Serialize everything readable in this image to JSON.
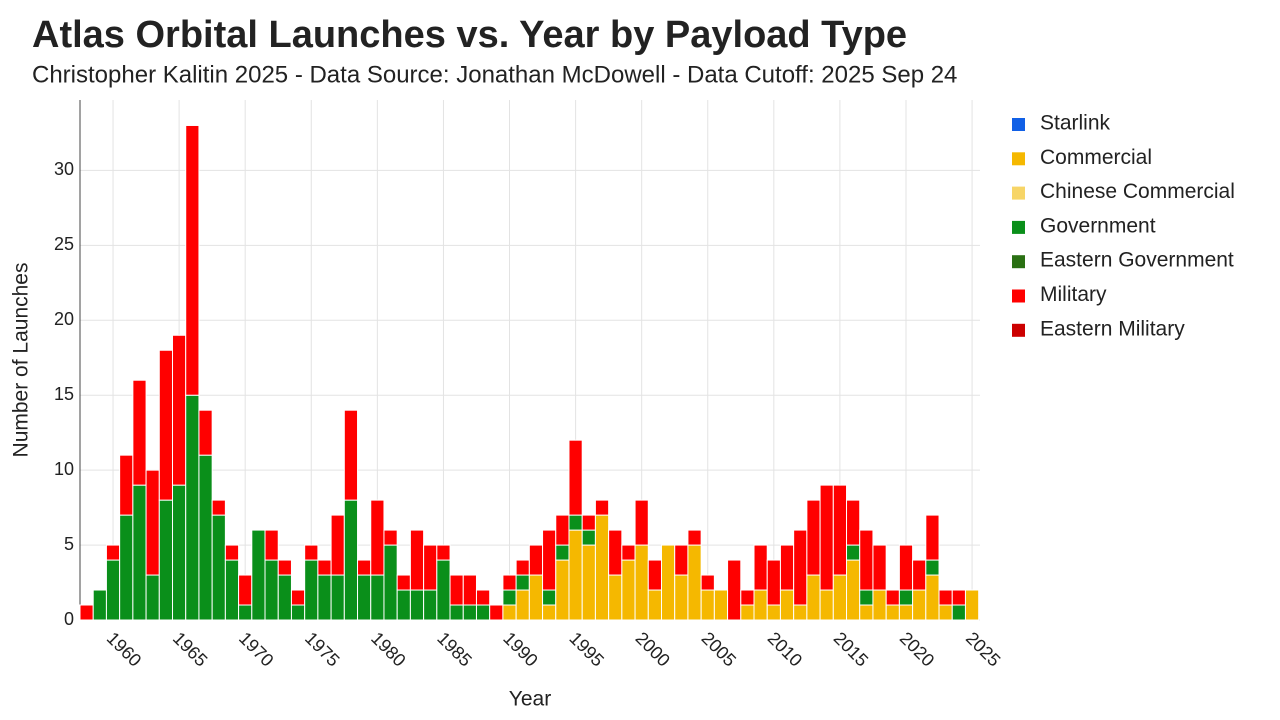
{
  "chart_data": {
    "type": "stacked_bar",
    "title": "Atlas Orbital Launches vs. Year by Payload Type",
    "subtitle": "Christopher Kalitin 2025 - Data Source: Jonathan McDowell - Data Cutoff: 2025 Sep 24",
    "x_label": "Year",
    "y_label": "Number of Launches",
    "x": [
      1958,
      1959,
      1960,
      1961,
      1962,
      1963,
      1964,
      1965,
      1966,
      1967,
      1968,
      1969,
      1970,
      1971,
      1972,
      1973,
      1974,
      1975,
      1976,
      1977,
      1978,
      1979,
      1980,
      1981,
      1982,
      1983,
      1984,
      1985,
      1986,
      1987,
      1988,
      1989,
      1990,
      1991,
      1992,
      1993,
      1994,
      1995,
      1996,
      1997,
      1998,
      1999,
      2000,
      2001,
      2002,
      2003,
      2004,
      2005,
      2006,
      2007,
      2008,
      2009,
      2010,
      2011,
      2012,
      2013,
      2014,
      2015,
      2016,
      2017,
      2018,
      2019,
      2020,
      2021,
      2022,
      2023,
      2024,
      2025
    ],
    "series": [
      {
        "name": "Starlink",
        "color": "#1160e6",
        "values": [
          0,
          0,
          0,
          0,
          0,
          0,
          0,
          0,
          0,
          0,
          0,
          0,
          0,
          0,
          0,
          0,
          0,
          0,
          0,
          0,
          0,
          0,
          0,
          0,
          0,
          0,
          0,
          0,
          0,
          0,
          0,
          0,
          0,
          0,
          0,
          0,
          0,
          0,
          0,
          0,
          0,
          0,
          0,
          0,
          0,
          0,
          0,
          0,
          0,
          0,
          0,
          0,
          0,
          0,
          0,
          0,
          0,
          0,
          0,
          0,
          0,
          0,
          0,
          0,
          0,
          0,
          0,
          0
        ]
      },
      {
        "name": "Commercial",
        "color": "#f5b800",
        "values": [
          0,
          0,
          0,
          0,
          0,
          0,
          0,
          0,
          0,
          0,
          0,
          0,
          0,
          0,
          0,
          0,
          0,
          0,
          0,
          0,
          0,
          0,
          0,
          0,
          0,
          0,
          0,
          0,
          0,
          0,
          0,
          0,
          1,
          2,
          3,
          1,
          4,
          6,
          5,
          7,
          3,
          4,
          5,
          2,
          5,
          3,
          5,
          2,
          2,
          0,
          1,
          2,
          1,
          2,
          1,
          3,
          2,
          3,
          4,
          1,
          2,
          1,
          1,
          2,
          3,
          1,
          0,
          2
        ]
      },
      {
        "name": "Chinese Commercial",
        "color": "#f7d567",
        "values": [
          0,
          0,
          0,
          0,
          0,
          0,
          0,
          0,
          0,
          0,
          0,
          0,
          0,
          0,
          0,
          0,
          0,
          0,
          0,
          0,
          0,
          0,
          0,
          0,
          0,
          0,
          0,
          0,
          0,
          0,
          0,
          0,
          0,
          0,
          0,
          0,
          0,
          0,
          0,
          0,
          0,
          0,
          0,
          0,
          0,
          0,
          0,
          0,
          0,
          0,
          0,
          0,
          0,
          0,
          0,
          0,
          0,
          0,
          0,
          0,
          0,
          0,
          0,
          0,
          0,
          0,
          0,
          0
        ]
      },
      {
        "name": "Government",
        "color": "#0a8f1a",
        "values": [
          0,
          2,
          4,
          7,
          9,
          3,
          8,
          9,
          15,
          11,
          7,
          4,
          1,
          6,
          4,
          3,
          1,
          4,
          3,
          3,
          8,
          3,
          3,
          5,
          2,
          2,
          2,
          4,
          1,
          1,
          1,
          0,
          1,
          1,
          0,
          1,
          1,
          1,
          1,
          0,
          0,
          0,
          0,
          0,
          0,
          0,
          0,
          0,
          0,
          0,
          0,
          0,
          0,
          0,
          0,
          0,
          0,
          0,
          1,
          1,
          0,
          0,
          1,
          0,
          1,
          0,
          1,
          0
        ]
      },
      {
        "name": "Eastern Government",
        "color": "#2a7013",
        "values": [
          0,
          0,
          0,
          0,
          0,
          0,
          0,
          0,
          0,
          0,
          0,
          0,
          0,
          0,
          0,
          0,
          0,
          0,
          0,
          0,
          0,
          0,
          0,
          0,
          0,
          0,
          0,
          0,
          0,
          0,
          0,
          0,
          0,
          0,
          0,
          0,
          0,
          0,
          0,
          0,
          0,
          0,
          0,
          0,
          0,
          0,
          0,
          0,
          0,
          0,
          0,
          0,
          0,
          0,
          0,
          0,
          0,
          0,
          0,
          0,
          0,
          0,
          0,
          0,
          0,
          0,
          0,
          0
        ]
      },
      {
        "name": "Military",
        "color": "#ff0000",
        "values": [
          1,
          0,
          1,
          4,
          7,
          7,
          10,
          10,
          18,
          3,
          1,
          1,
          2,
          0,
          2,
          1,
          1,
          1,
          1,
          4,
          6,
          1,
          5,
          1,
          1,
          4,
          3,
          1,
          2,
          2,
          1,
          1,
          1,
          1,
          2,
          4,
          2,
          5,
          1,
          1,
          3,
          1,
          3,
          2,
          0,
          2,
          1,
          1,
          0,
          4,
          1,
          3,
          3,
          3,
          5,
          5,
          7,
          6,
          3,
          4,
          3,
          1,
          3,
          2,
          3,
          1,
          1,
          0
        ]
      },
      {
        "name": "Eastern Military",
        "color": "#cc0000",
        "values": [
          0,
          0,
          0,
          0,
          0,
          0,
          0,
          0,
          0,
          0,
          0,
          0,
          0,
          0,
          0,
          0,
          0,
          0,
          0,
          0,
          0,
          0,
          0,
          0,
          0,
          0,
          0,
          0,
          0,
          0,
          0,
          0,
          0,
          0,
          0,
          0,
          0,
          0,
          0,
          0,
          0,
          0,
          0,
          0,
          0,
          0,
          0,
          0,
          0,
          0,
          0,
          0,
          0,
          0,
          0,
          0,
          0,
          0,
          0,
          0,
          0,
          0,
          0,
          0,
          0,
          0,
          0,
          0
        ]
      }
    ],
    "xlim": [
      1957.5,
      2025.6
    ],
    "xticks": [
      1960,
      1965,
      1970,
      1975,
      1980,
      1985,
      1990,
      1995,
      2000,
      2005,
      2010,
      2015,
      2020,
      2025
    ],
    "ylim": [
      0,
      34.7
    ],
    "yticks": [
      0,
      5,
      10,
      15,
      20,
      25,
      30
    ],
    "grid": true,
    "legend": "right"
  }
}
